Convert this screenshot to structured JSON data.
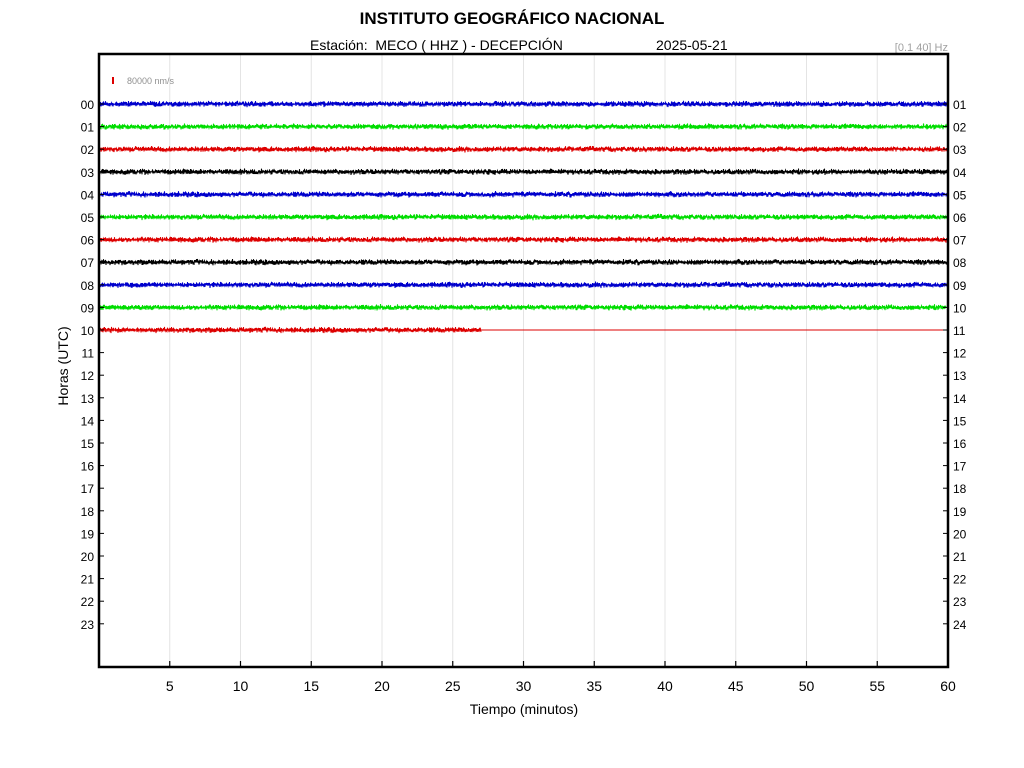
{
  "header": {
    "title": "INSTITUTO GEOGRÁFICO NACIONAL",
    "station_line": "Estación:  MECO ( HHZ ) - DECEPCIÓN",
    "date": "2025-05-21",
    "filter": "[0.1 40] Hz"
  },
  "scale": {
    "label": "80000 nm/s",
    "color": "#dd0000"
  },
  "chart_data": {
    "type": "line",
    "title": "INSTITUTO GEOGRÁFICO NACIONAL",
    "xlabel": "Tiempo (minutos)",
    "ylabel": "Horas (UTC)",
    "xlim": [
      0,
      60
    ],
    "xticks": [
      5,
      10,
      15,
      20,
      25,
      30,
      35,
      40,
      45,
      50,
      55,
      60
    ],
    "grid": "vertical",
    "left_labels": [
      "00",
      "01",
      "02",
      "03",
      "04",
      "05",
      "06",
      "07",
      "08",
      "09",
      "10",
      "11",
      "12",
      "13",
      "14",
      "15",
      "16",
      "17",
      "18",
      "19",
      "20",
      "21",
      "22",
      "23"
    ],
    "right_labels": [
      "01",
      "02",
      "03",
      "04",
      "05",
      "06",
      "07",
      "08",
      "09",
      "10",
      "11",
      "12",
      "13",
      "14",
      "15",
      "16",
      "17",
      "18",
      "19",
      "20",
      "21",
      "22",
      "23",
      "24"
    ],
    "series": [
      {
        "hour": 0,
        "color": "#0000cc",
        "data_end_minute": 60
      },
      {
        "hour": 1,
        "color": "#00dd00",
        "data_end_minute": 60
      },
      {
        "hour": 2,
        "color": "#dd0000",
        "data_end_minute": 60
      },
      {
        "hour": 3,
        "color": "#000000",
        "data_end_minute": 60
      },
      {
        "hour": 4,
        "color": "#0000cc",
        "data_end_minute": 60
      },
      {
        "hour": 5,
        "color": "#00dd00",
        "data_end_minute": 60
      },
      {
        "hour": 6,
        "color": "#dd0000",
        "data_end_minute": 60
      },
      {
        "hour": 7,
        "color": "#000000",
        "data_end_minute": 60
      },
      {
        "hour": 8,
        "color": "#0000cc",
        "data_end_minute": 60
      },
      {
        "hour": 9,
        "color": "#00dd00",
        "data_end_minute": 60
      },
      {
        "hour": 10,
        "color": "#dd0000",
        "data_end_minute": 27
      }
    ]
  }
}
